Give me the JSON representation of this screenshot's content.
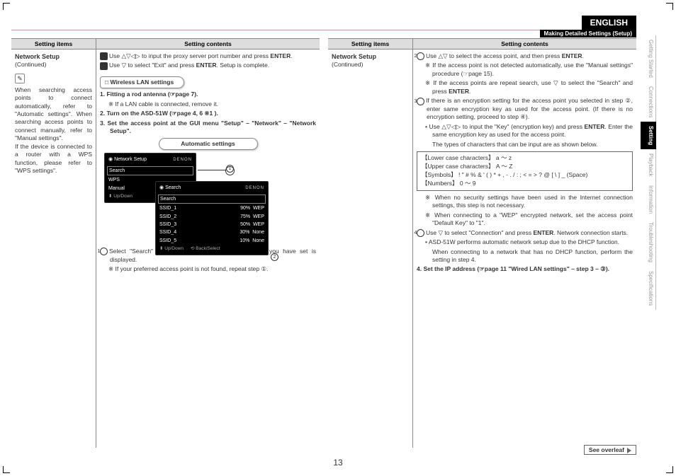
{
  "language_tab": "ENGLISH",
  "header_bar": "Making Detailed Settings (Setup)",
  "page_number": "13",
  "see_overleaf": "See overleaf",
  "side_tabs": [
    "Getting Started",
    "Connections",
    "Setting",
    "Playback",
    "Information",
    "Troubleshooting",
    "Specifications"
  ],
  "side_active_index": 2,
  "table_headers": {
    "items": "Setting items",
    "contents": "Setting contents"
  },
  "left": {
    "title": "Network Setup",
    "continued": "(Continued)",
    "note": "When searching access points to connect automatically, refer to \"Automatic settings\". When searching access points to connect manually, refer to \"Manual settings\".\nIf the device is connected to a router with a WPS function, please refer to \"WPS settings\"."
  },
  "mid": {
    "l6": "Use △▽◁▷ to input the proxy server port number and press ENTER.",
    "l7": "Use ▽ to select \"Exit\" and press ENTER. Setup is complete.",
    "wireless_label": "□ Wireless LAN settings",
    "fit1": "Fitting a rod antenna (☞page 7).",
    "fit_note": "※ If a LAN cable is connected, remove it.",
    "turn": "Turn on the ASD-51W (☞page 4, 6 ※1 ).",
    "setacc": "Set the access point at the GUI menu \"Setup\" – \"Network\" – \"Network Setup\".",
    "auto_label": "Automatic settings",
    "screen1": {
      "title": "Network Setup",
      "logo": "DENON",
      "rows": [
        "Search",
        "WPS",
        "Manual"
      ],
      "footer": "⬍ Up/Down"
    },
    "screen2": {
      "title": "Search",
      "logo": "DENON",
      "list": [
        {
          "ssid": "SSID_1",
          "pct": "90%",
          "enc": "WEP"
        },
        {
          "ssid": "SSID_2",
          "pct": "75%",
          "enc": "WEP"
        },
        {
          "ssid": "SSID_3",
          "pct": "50%",
          "enc": "WEP"
        },
        {
          "ssid": "SSID_4",
          "pct": "30%",
          "enc": "None"
        },
        {
          "ssid": "SSID_5",
          "pct": "10%",
          "enc": "None"
        }
      ],
      "footer1": "⬍ Up/Down",
      "footer2": "⟲ Back/Select"
    },
    "after1": "Select \"Search\" and press ENTER. The access point you have set is displayed.",
    "after_note": "※ If your preferred access point is not found, repeat step ①."
  },
  "right_left": {
    "title": "Network Setup",
    "continued": "(Continued)"
  },
  "right": {
    "l2": "Use △▽ to select the access point, and then press ENTER.",
    "l2n1": "※ If the access point is not detected automatically, use the \"Manual settings\" procedure (☞page 15).",
    "l2n2": "※ If the access points are repeat search, use ▽ to select the \"Search\" and press ENTER.",
    "l3": "If there is an encryption setting for the access point you selected in step ②, enter same encryption key as used for the access point. (If there is no encryption setting, proceed to step ④).",
    "l3b": "• Use △▽◁▷ to input the \"Key\" (encryption key) and press ENTER. Enter the same encryption key as used for the access point.",
    "l3c": "The types of characters that can be input are as shown below.",
    "charbox": {
      "lower": "【Lower case characters】 a ～ z",
      "upper": "【Upper case characters】 A ～ Z",
      "symbols": "【Symbols】 ! \" # % & ' ( ) * + , - . / : ; < = > ? @ [ \\ ] _ (Space)",
      "numbers": "【Numbers】 0 ～ 9"
    },
    "n3a": "※ When no security settings have been used in the Internet connection settings, this step is not necessary.",
    "n3b": "※ When connecting to a \"WEP\" encrypted network, set the access point \"Default Key\" to \"1\".",
    "l4": "Use ▽ to select \"Connection\" and press ENTER. Network connection starts.",
    "l4a": "• ASD-51W performs automatic network setup due to the DHCP function.",
    "l4b": "When connecting to a network that has no DHCP function, perform the setting in step 4.",
    "step4": "Set the IP address (☞page 11 \"Wired LAN settings\" – step 3 – ③)."
  }
}
